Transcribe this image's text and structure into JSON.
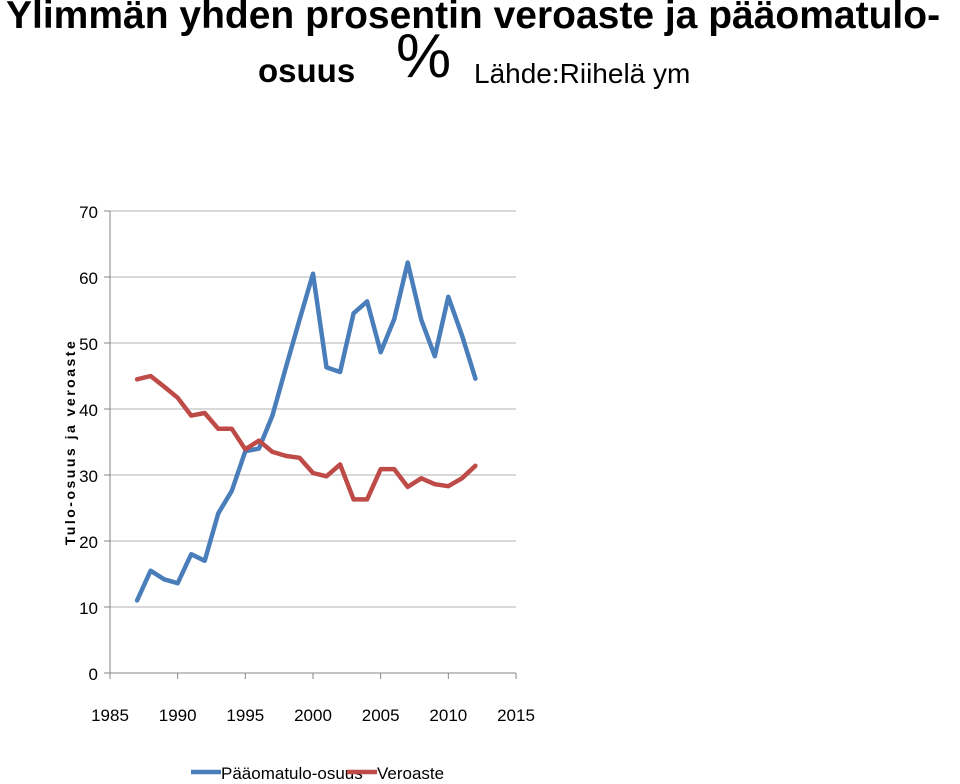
{
  "title": {
    "line1": "Ylimmän yhden prosentin veroaste ja pääomatulo-",
    "line2": "osuus",
    "percent": "%",
    "source": "Lähde:Riihelä ym"
  },
  "chart_data": {
    "type": "line",
    "ylabel": "Tulo-osuus ja veroaste",
    "xlim": [
      1985,
      2015
    ],
    "ylim": [
      0,
      70
    ],
    "x_ticks": [
      "1985",
      "1990",
      "1995",
      "2000",
      "2005",
      "2010",
      "2015"
    ],
    "y_ticks": [
      "0",
      "10",
      "20",
      "30",
      "40",
      "50",
      "60",
      "70"
    ],
    "grid": "horizontal",
    "legend_position": "bottom",
    "colors": {
      "Pääomatulo-osuus": "#4a7ebb",
      "Veroaste": "#be4b48"
    },
    "series": [
      {
        "name": "Pääomatulo-osuus",
        "x": [
          1987,
          1988,
          1989,
          1990,
          1991,
          1992,
          1993,
          1994,
          1995,
          1996,
          1997,
          1998,
          1999,
          2000,
          2001,
          2002,
          2003,
          2004,
          2005,
          2006,
          2007,
          2008,
          2009,
          2010,
          2011,
          2012
        ],
        "values": [
          11,
          15.5,
          14.2,
          13.6,
          18,
          17,
          24.2,
          27.6,
          33.6,
          34,
          39,
          46.3,
          53.5,
          60.5,
          46.3,
          45.6,
          54.5,
          56.3,
          48.6,
          53.6,
          62.2,
          53.5,
          48,
          57,
          51.2,
          44.6
        ]
      },
      {
        "name": "Veroaste",
        "x": [
          1987,
          1988,
          1989,
          1990,
          1991,
          1992,
          1993,
          1994,
          1995,
          1996,
          1997,
          1998,
          1999,
          2000,
          2001,
          2002,
          2003,
          2004,
          2005,
          2006,
          2007,
          2008,
          2009,
          2010,
          2011,
          2012
        ],
        "values": [
          44.5,
          45,
          43.4,
          41.7,
          39,
          39.4,
          37,
          37,
          33.9,
          35.2,
          33.5,
          32.9,
          32.6,
          30.3,
          29.8,
          31.6,
          26.3,
          26.3,
          30.9,
          30.9,
          28.2,
          29.5,
          28.6,
          28.3,
          29.5,
          31.4
        ]
      }
    ]
  }
}
